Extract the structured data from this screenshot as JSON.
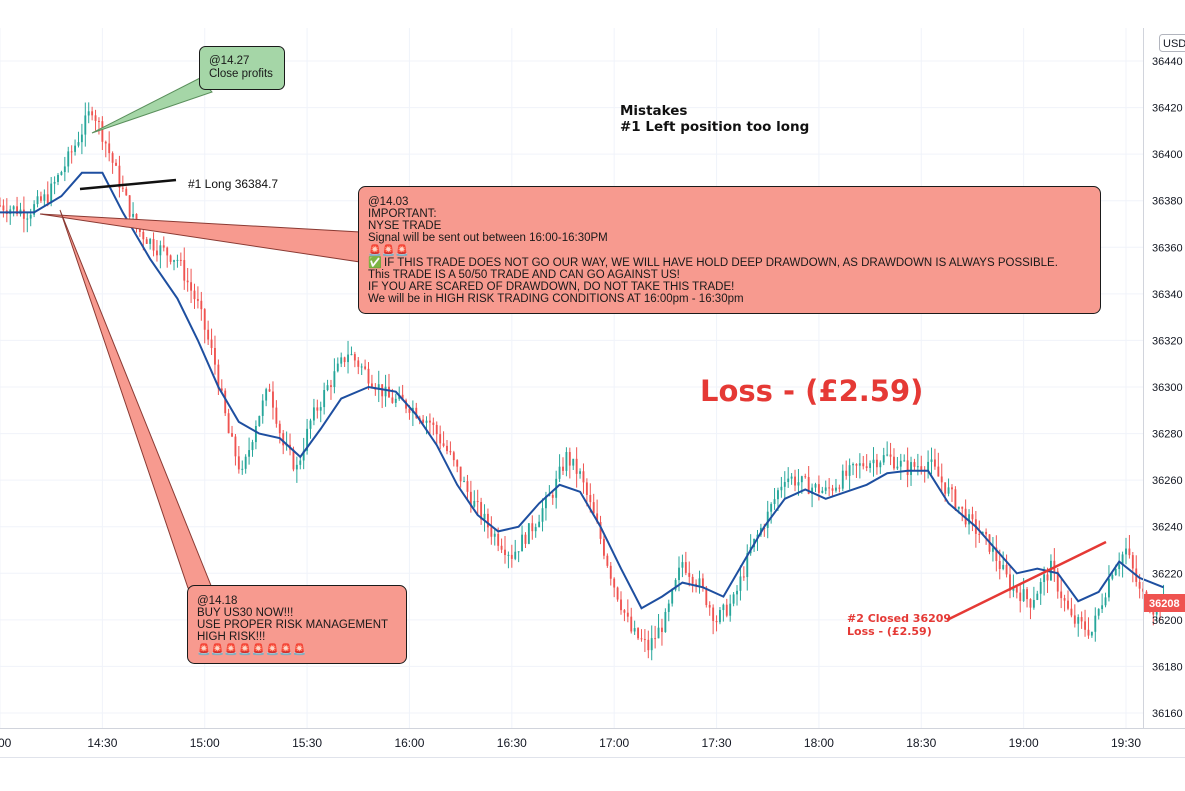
{
  "chart_data": {
    "type": "candlestick",
    "currency": "USD",
    "ylim": [
      36150,
      36450
    ],
    "y_ticks": [
      "36440",
      "36420",
      "36400",
      "36380",
      "36360",
      "36340",
      "36320",
      "36300",
      "36280",
      "36260",
      "36240",
      "36220",
      "36200",
      "36180",
      "36160"
    ],
    "x_ticks": [
      "00",
      "14:30",
      "15:00",
      "15:30",
      "16:00",
      "16:30",
      "17:00",
      "17:30",
      "18:00",
      "18:30",
      "19:00",
      "19:30"
    ],
    "x_tick_minutes": [
      0,
      30,
      60,
      90,
      120,
      150,
      180,
      210,
      240,
      270,
      300,
      330
    ],
    "price_path": [
      [
        0,
        36378
      ],
      [
        8,
        36375
      ],
      [
        14,
        36382
      ],
      [
        20,
        36398
      ],
      [
        24,
        36410
      ],
      [
        27,
        36420
      ],
      [
        31,
        36405
      ],
      [
        35,
        36388
      ],
      [
        40,
        36368
      ],
      [
        46,
        36360
      ],
      [
        52,
        36355
      ],
      [
        58,
        36335
      ],
      [
        63,
        36310
      ],
      [
        67,
        36280
      ],
      [
        71,
        36262
      ],
      [
        75,
        36285
      ],
      [
        79,
        36300
      ],
      [
        83,
        36275
      ],
      [
        87,
        36265
      ],
      [
        91,
        36285
      ],
      [
        96,
        36300
      ],
      [
        102,
        36315
      ],
      [
        108,
        36305
      ],
      [
        114,
        36295
      ],
      [
        120,
        36292
      ],
      [
        126,
        36285
      ],
      [
        132,
        36270
      ],
      [
        138,
        36252
      ],
      [
        144,
        36238
      ],
      [
        150,
        36228
      ],
      [
        156,
        36240
      ],
      [
        162,
        36255
      ],
      [
        166,
        36270
      ],
      [
        170,
        36262
      ],
      [
        175,
        36240
      ],
      [
        180,
        36215
      ],
      [
        185,
        36195
      ],
      [
        190,
        36188
      ],
      [
        195,
        36200
      ],
      [
        200,
        36225
      ],
      [
        205,
        36215
      ],
      [
        210,
        36200
      ],
      [
        215,
        36208
      ],
      [
        220,
        36230
      ],
      [
        225,
        36245
      ],
      [
        230,
        36262
      ],
      [
        236,
        36258
      ],
      [
        242,
        36255
      ],
      [
        248,
        36262
      ],
      [
        254,
        36268
      ],
      [
        260,
        36270
      ],
      [
        266,
        36265
      ],
      [
        272,
        36268
      ],
      [
        278,
        36255
      ],
      [
        284,
        36242
      ],
      [
        290,
        36232
      ],
      [
        296,
        36215
      ],
      [
        302,
        36208
      ],
      [
        308,
        36222
      ],
      [
        314,
        36200
      ],
      [
        320,
        36195
      ],
      [
        326,
        36222
      ],
      [
        330,
        36230
      ],
      [
        334,
        36212
      ],
      [
        338,
        36205
      ],
      [
        341,
        36208
      ]
    ],
    "ma_path": [
      [
        0,
        36375
      ],
      [
        10,
        36375
      ],
      [
        18,
        36382
      ],
      [
        24,
        36392
      ],
      [
        30,
        36392
      ],
      [
        36,
        36375
      ],
      [
        44,
        36355
      ],
      [
        52,
        36338
      ],
      [
        58,
        36320
      ],
      [
        64,
        36300
      ],
      [
        70,
        36285
      ],
      [
        76,
        36280
      ],
      [
        82,
        36278
      ],
      [
        88,
        36270
      ],
      [
        94,
        36282
      ],
      [
        100,
        36295
      ],
      [
        108,
        36300
      ],
      [
        116,
        36298
      ],
      [
        122,
        36288
      ],
      [
        128,
        36275
      ],
      [
        134,
        36258
      ],
      [
        140,
        36245
      ],
      [
        146,
        36238
      ],
      [
        152,
        36240
      ],
      [
        158,
        36250
      ],
      [
        164,
        36258
      ],
      [
        170,
        36255
      ],
      [
        176,
        36240
      ],
      [
        182,
        36222
      ],
      [
        188,
        36205
      ],
      [
        194,
        36210
      ],
      [
        200,
        36216
      ],
      [
        206,
        36214
      ],
      [
        212,
        36210
      ],
      [
        218,
        36225
      ],
      [
        224,
        36240
      ],
      [
        230,
        36252
      ],
      [
        236,
        36256
      ],
      [
        242,
        36252
      ],
      [
        248,
        36255
      ],
      [
        254,
        36258
      ],
      [
        260,
        36263
      ],
      [
        266,
        36264
      ],
      [
        272,
        36264
      ],
      [
        278,
        36250
      ],
      [
        286,
        36240
      ],
      [
        292,
        36230
      ],
      [
        298,
        36220
      ],
      [
        304,
        36222
      ],
      [
        310,
        36220
      ],
      [
        316,
        36208
      ],
      [
        322,
        36212
      ],
      [
        328,
        36225
      ],
      [
        334,
        36218
      ],
      [
        341,
        36214
      ]
    ],
    "current_price": "36208"
  },
  "annotations": {
    "close_profits": {
      "line1": "@14.27",
      "line2": "Close profits"
    },
    "long_entry": {
      "label": "#1 Long 36384.7"
    },
    "buy_signal": {
      "lines": [
        "@14.18",
        "BUY US30 NOW!!!",
        "USE PROPER RISK MANAGEMENT",
        "HIGH RISK!!!"
      ],
      "emoji": "🚨🚨🚨🚨🚨🚨🚨🚨"
    },
    "important": {
      "lines": [
        "@14.03",
        "IMPORTANT:",
        "NYSE TRADE",
        "Signal will be sent out between 16:00-16:30PM"
      ],
      "emoji": "🚨🚨🚨",
      "check": "✅",
      "warning_lines": [
        "IF THIS TRADE DOES NOT GO OUR WAY, WE WILL HAVE HOLD DEEP DRAWDOWN, AS DRAWDOWN IS ALWAYS POSSIBLE.",
        "This TRADE IS A 50/50 TRADE AND CAN GO AGAINST US!",
        "IF YOU ARE SCARED OF DRAWDOWN, DO NOT TAKE THIS TRADE!",
        "We will be in HIGH RISK TRADING CONDITIONS AT 16:00pm - 16:30pm"
      ]
    },
    "mistakes": {
      "title": "Mistakes",
      "item": "#1  Left position too long"
    },
    "loss_big": "Loss - (£2.59)",
    "closed": {
      "line1": "#2 Closed 36209",
      "line2": "Loss - (£2.59)"
    }
  },
  "colors": {
    "bull": "#26a69a",
    "bear": "#ef5350",
    "ma": "#1e4fa0",
    "callout_green": "#a5d6a7",
    "callout_red": "#f79a8f",
    "loss_red": "#e53935",
    "grid": "#f0f3fa"
  }
}
